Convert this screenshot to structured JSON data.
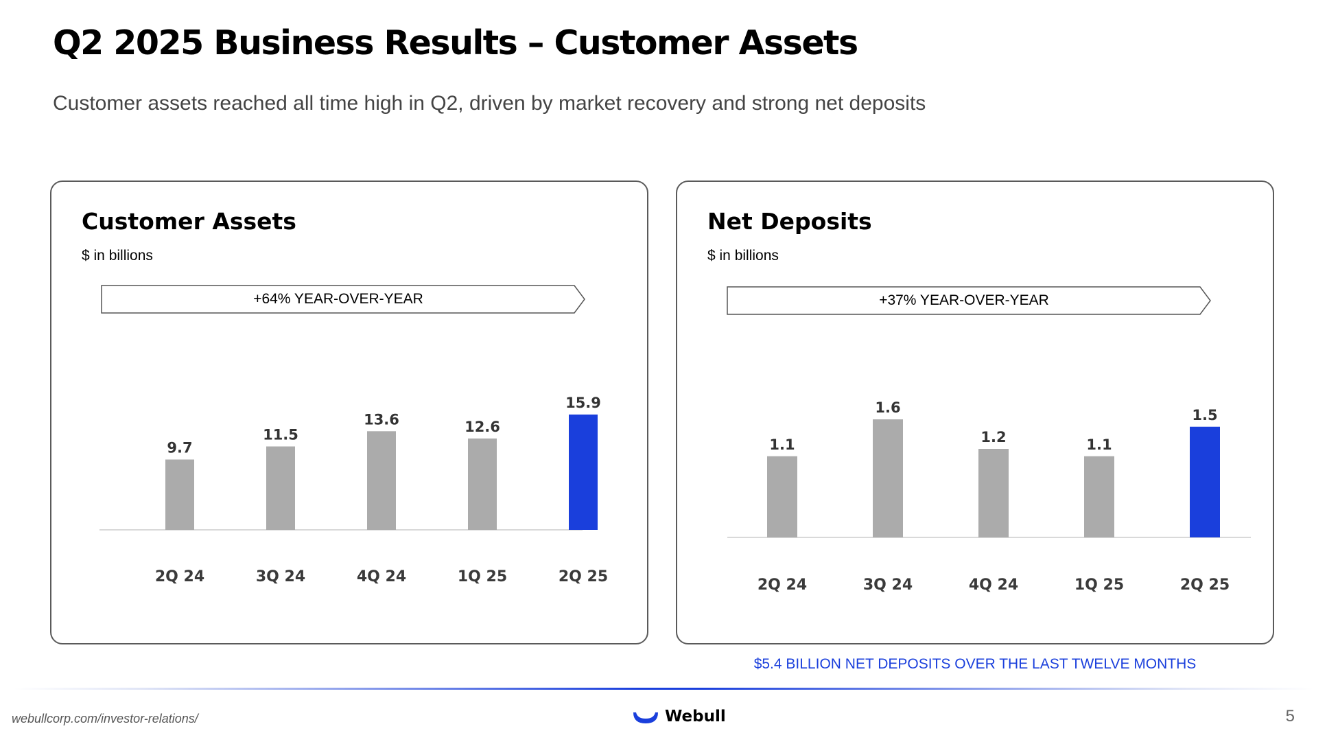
{
  "slide": {
    "title": "Q2 2025 Business Results – Customer Assets",
    "subtitle": "Customer assets reached all time high in Q2, driven by market recovery and strong net deposits"
  },
  "colors": {
    "bar": "#ababab",
    "highlight": "#1a3fdc",
    "axis": "#d9d9d9",
    "label": "#3a3a3a"
  },
  "chart_data": [
    {
      "type": "bar",
      "title": "Customer Assets",
      "unit": "$ in billions",
      "banner": "+64% YEAR-OVER-YEAR",
      "categories": [
        "2Q 24",
        "3Q 24",
        "4Q 24",
        "1Q 25",
        "2Q 25"
      ],
      "values": [
        9.7,
        11.5,
        13.6,
        12.6,
        15.9
      ],
      "value_labels": [
        "9.7",
        "11.5",
        "13.6",
        "12.6",
        "15.9"
      ],
      "highlight_index": 4,
      "ylim": [
        0,
        15.9
      ],
      "grid": false
    },
    {
      "type": "bar",
      "title": "Net Deposits",
      "unit": "$ in billions",
      "banner": "+37% YEAR-OVER-YEAR",
      "categories": [
        "2Q 24",
        "3Q 24",
        "4Q 24",
        "1Q 25",
        "2Q 25"
      ],
      "values": [
        1.1,
        1.6,
        1.2,
        1.1,
        1.5
      ],
      "value_labels": [
        "1.1",
        "1.6",
        "1.2",
        "1.1",
        "1.5"
      ],
      "highlight_index": 4,
      "ylim": [
        0,
        1.6
      ],
      "grid": false
    }
  ],
  "footnote": "$5.4 BILLION NET DEPOSITS OVER THE LAST TWELVE MONTHS",
  "footer": {
    "url": "webullcorp.com/investor-relations/",
    "brand": "Webull",
    "page": "5"
  },
  "icons": {
    "brand_logo": "webull-smile-icon",
    "banner_arrow": "chevron-arrow-icon"
  }
}
